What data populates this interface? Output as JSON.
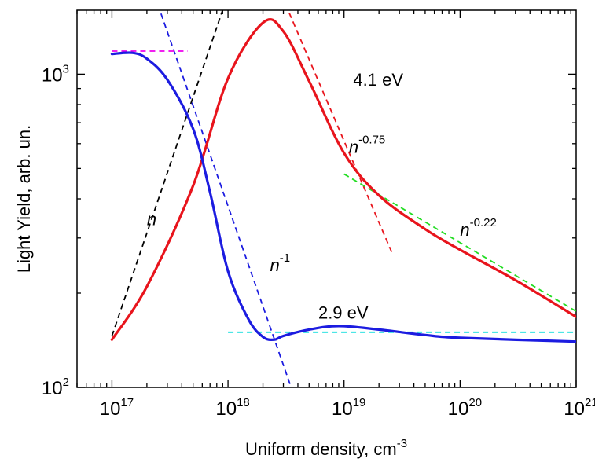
{
  "chart_data": {
    "type": "line",
    "xlabel": "Uniform density, cm",
    "xlabel_sup": "-3",
    "ylabel": "Light Yield, arb. un.",
    "x_scale": "log",
    "y_scale": "log",
    "xlim": [
      5e+16,
      1e+21
    ],
    "ylim": [
      100,
      1600
    ],
    "x_ticks": [
      {
        "value": 1e+17,
        "base": "10",
        "exp": "17"
      },
      {
        "value": 1e+18,
        "base": "10",
        "exp": "18"
      },
      {
        "value": 1e+19,
        "base": "10",
        "exp": "19"
      },
      {
        "value": 1e+20,
        "base": "10",
        "exp": "20"
      },
      {
        "value": 1e+21,
        "base": "10",
        "exp": "21"
      }
    ],
    "y_ticks": [
      {
        "value": 100,
        "base": "10",
        "exp": "2"
      },
      {
        "value": 1000,
        "base": "10",
        "exp": "3"
      }
    ],
    "grid": false,
    "series": [
      {
        "name": "4.1 eV",
        "color": "#e8141c",
        "style": "solid",
        "x": [
          1e+17,
          2e+17,
          5e+17,
          1e+18,
          2e+18,
          3e+18,
          5e+18,
          1e+19,
          2e+19,
          5e+19,
          1e+20,
          3e+20,
          1e+21
        ],
        "y": [
          142,
          210,
          440,
          970,
          1460,
          1370,
          950,
          560,
          410,
          320,
          275,
          220,
          168
        ]
      },
      {
        "name": "2.9 eV",
        "color": "#1c1ce0",
        "style": "solid",
        "x": [
          1e+17,
          1.5e+17,
          2e+17,
          3e+17,
          5e+17,
          7e+17,
          1e+18,
          1.5e+18,
          2e+18,
          2.5e+18,
          3e+18,
          5e+18,
          9e+18,
          2e+19,
          5e+19,
          1e+20,
          1e+21
        ],
        "y": [
          1160,
          1170,
          1120,
          960,
          670,
          420,
          235,
          165,
          145,
          142,
          146,
          153,
          157,
          153,
          147,
          144,
          140
        ]
      }
    ],
    "guide_lines": [
      {
        "label": "n",
        "color": "#000000",
        "style": "dashed",
        "x": [
          1e+17,
          1e+18
        ],
        "y": [
          146,
          1800
        ]
      },
      {
        "label": "n^-1",
        "color": "#1c1ce0",
        "style": "dashed",
        "x": [
          2.2e+17,
          3.5e+18
        ],
        "y": [
          1900,
          100
        ]
      },
      {
        "label": "flat-top",
        "color": "#ee00ee",
        "style": "dashed",
        "x": [
          1e+17,
          4.5e+17
        ],
        "y": [
          1185,
          1185
        ]
      },
      {
        "label": "n^-0.75",
        "color": "#e8141c",
        "style": "dashed",
        "x": [
          2.7e+18,
          2.6e+19
        ],
        "y": [
          1900,
          268
        ]
      },
      {
        "label": "n^-0.22",
        "color": "#22dd22",
        "style": "dashed",
        "x": [
          1e+19,
          1e+21
        ],
        "y": [
          480,
          175
        ]
      },
      {
        "label": "flat-bottom",
        "color": "#11dddd",
        "style": "dashed",
        "x": [
          1e+18,
          1e+21
        ],
        "y": [
          150,
          150
        ]
      }
    ],
    "annotations": [
      {
        "text": "4.1 eV",
        "x": 1.2e+19,
        "y": 920
      },
      {
        "text": "2.9 eV",
        "x": 6e+18,
        "y": 166
      },
      {
        "text": "n",
        "sup": "",
        "x": 2e+17,
        "y": 330
      },
      {
        "text": "n",
        "sup": "-1",
        "x": 2.3e+18,
        "y": 235
      },
      {
        "text": "n",
        "sup": "-0.75",
        "x": 1.1e+19,
        "y": 560
      },
      {
        "text": "n",
        "sup": "-0.22",
        "x": 1e+20,
        "y": 305
      }
    ]
  }
}
